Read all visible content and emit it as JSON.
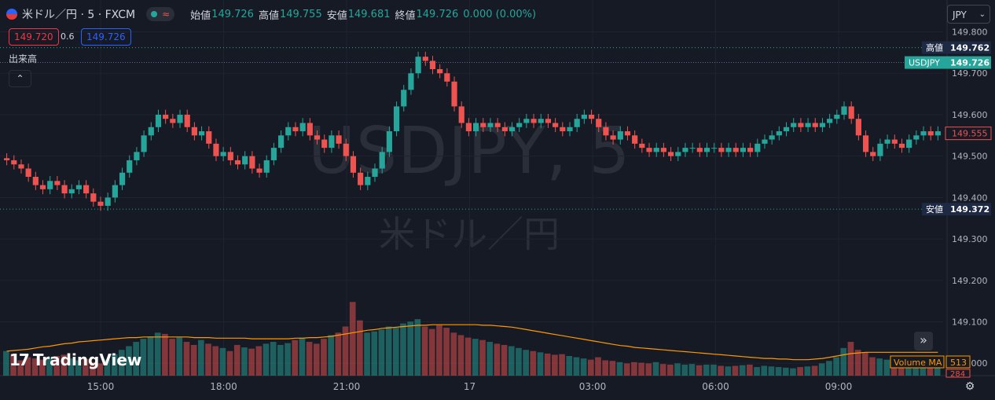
{
  "header": {
    "symbol_title": "米ドル／円 · 5 · FXCM",
    "status_wave": "≈",
    "open_label": "始値",
    "open_value": "149.726",
    "high_label": "高値",
    "high_value": "149.755",
    "low_label": "安値",
    "low_value": "149.681",
    "close_label": "終値",
    "close_value": "149.726",
    "change": "0.000 (0.00%)"
  },
  "quote": {
    "bid": "149.720",
    "spread": "0.6",
    "ask": "149.726"
  },
  "volume_pane": {
    "label": "出来高",
    "collapse_glyph": "⌃"
  },
  "currency": {
    "value": "JPY",
    "chevron": "⌄"
  },
  "watermark": {
    "main": "USDJPY, 5",
    "sub": "米ドル／円"
  },
  "branding": {
    "mark": "17",
    "text": "TradingView"
  },
  "controls": {
    "scroll_glyph": "»",
    "settings_glyph": "⚙"
  },
  "colors": {
    "up": "#26a69a",
    "down": "#ef5350",
    "background": "#161a25",
    "ma": "#ff9800"
  },
  "chart_data": {
    "type": "candlestick",
    "symbol": "USDJPY",
    "timeframe": "5",
    "x_ticks": [
      "15:00",
      "18:00",
      "21:00",
      "17",
      "03:00",
      "06:00",
      "09:00"
    ],
    "y_ticks": [
      "149.800",
      "149.700",
      "149.600",
      "149.500",
      "149.400",
      "149.300",
      "149.200",
      "149.100",
      "149.000"
    ],
    "ylim": [
      148.97,
      149.82
    ],
    "price_labels": [
      {
        "label": "高値",
        "value": "149.762",
        "kind": "high"
      },
      {
        "label": "USDJPY",
        "value": "149.726",
        "kind": "last"
      },
      {
        "label": "",
        "value": "149.555",
        "kind": "current"
      },
      {
        "label": "安値",
        "value": "149.372",
        "kind": "low"
      }
    ],
    "high_line": 149.762,
    "low_line": 149.372,
    "close_series": [
      149.49,
      149.48,
      149.47,
      149.45,
      149.43,
      149.42,
      149.44,
      149.43,
      149.41,
      149.42,
      149.43,
      149.41,
      149.39,
      149.38,
      149.4,
      149.43,
      149.46,
      149.49,
      149.51,
      149.55,
      149.57,
      149.6,
      149.59,
      149.58,
      149.6,
      149.57,
      149.55,
      149.56,
      149.53,
      149.5,
      149.51,
      149.49,
      149.48,
      149.5,
      149.47,
      149.46,
      149.49,
      149.52,
      149.55,
      149.57,
      149.56,
      149.58,
      149.55,
      149.54,
      149.52,
      149.55,
      149.53,
      149.5,
      149.46,
      149.43,
      149.45,
      149.47,
      149.51,
      149.56,
      149.62,
      149.66,
      149.7,
      149.74,
      149.73,
      149.71,
      149.7,
      149.68,
      149.62,
      149.58,
      149.56,
      149.58,
      149.57,
      149.58,
      149.57,
      149.56,
      149.57,
      149.58,
      149.59,
      149.58,
      149.59,
      149.58,
      149.57,
      149.56,
      149.57,
      149.59,
      149.6,
      149.59,
      149.57,
      149.55,
      149.54,
      149.56,
      149.55,
      149.53,
      149.52,
      149.51,
      149.52,
      149.51,
      149.5,
      149.51,
      149.52,
      149.52,
      149.51,
      149.52,
      149.52,
      149.51,
      149.52,
      149.51,
      149.52,
      149.51,
      149.53,
      149.54,
      149.55,
      149.56,
      149.57,
      149.58,
      149.57,
      149.58,
      149.57,
      149.58,
      149.59,
      149.6,
      149.62,
      149.59,
      149.55,
      149.51,
      149.5,
      149.53,
      149.54,
      149.53,
      149.52,
      149.54,
      149.55,
      149.56,
      149.55,
      149.56
    ],
    "volume_axis": {
      "label": "Volume MA",
      "ma_value": "513",
      "volume_value": "284"
    },
    "volume_series": [
      40,
      35,
      25,
      30,
      28,
      26,
      30,
      32,
      34,
      28,
      25,
      27,
      22,
      20,
      26,
      35,
      42,
      48,
      55,
      60,
      64,
      70,
      68,
      60,
      62,
      55,
      50,
      58,
      52,
      48,
      45,
      40,
      50,
      46,
      44,
      48,
      52,
      55,
      50,
      53,
      58,
      62,
      55,
      52,
      60,
      66,
      70,
      80,
      120,
      90,
      70,
      72,
      75,
      80,
      78,
      85,
      88,
      92,
      80,
      76,
      82,
      78,
      70,
      66,
      62,
      60,
      58,
      55,
      52,
      50,
      48,
      45,
      42,
      40,
      38,
      36,
      34,
      35,
      32,
      30,
      28,
      26,
      30,
      25,
      24,
      22,
      20,
      22,
      21,
      20,
      22,
      19,
      18,
      20,
      18,
      19,
      17,
      18,
      18,
      16,
      15,
      16,
      17,
      18,
      14,
      16,
      15,
      14,
      13,
      12,
      14,
      15,
      16,
      20,
      24,
      30,
      45,
      55,
      42,
      38,
      30,
      28,
      26,
      24,
      22,
      25,
      20,
      22,
      21,
      23
    ],
    "volume_ma_series": [
      40,
      41,
      42,
      43,
      45,
      47,
      48,
      50,
      52,
      53,
      55,
      56,
      57,
      58,
      59,
      60,
      61,
      62,
      62,
      63,
      63,
      63,
      63,
      63,
      63,
      63,
      62,
      62,
      62,
      61,
      61,
      61,
      61,
      61,
      60,
      60,
      60,
      60,
      60,
      60,
      61,
      61,
      62,
      62,
      63,
      64,
      66,
      68,
      70,
      72,
      74,
      75,
      77,
      78,
      79,
      80,
      81,
      82,
      82,
      83,
      83,
      83,
      83,
      83,
      83,
      83,
      82,
      82,
      81,
      80,
      79,
      77,
      75,
      73,
      71,
      69,
      67,
      65,
      63,
      61,
      59,
      57,
      55,
      53,
      51,
      49,
      48,
      46,
      45,
      44,
      43,
      42,
      41,
      40,
      39,
      38,
      37,
      36,
      35,
      34,
      33,
      32,
      31,
      30,
      29,
      28,
      28,
      27,
      27,
      26,
      26,
      26,
      27,
      28,
      30,
      32,
      34,
      36,
      37,
      38,
      38,
      38,
      38,
      38,
      38,
      38,
      38,
      38,
      38,
      38
    ]
  }
}
